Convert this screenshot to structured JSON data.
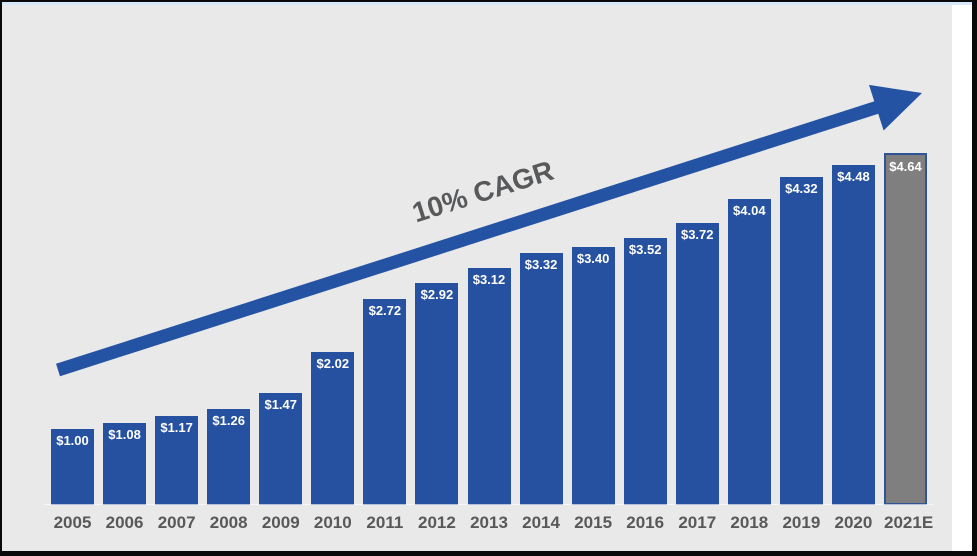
{
  "chart_data": {
    "type": "bar",
    "title": "",
    "annotation": "10% CAGR",
    "categories": [
      "2005",
      "2006",
      "2007",
      "2008",
      "2009",
      "2010",
      "2011",
      "2012",
      "2013",
      "2014",
      "2015",
      "2016",
      "2017",
      "2018",
      "2019",
      "2020",
      "2021E"
    ],
    "values": [
      1.0,
      1.08,
      1.17,
      1.26,
      1.47,
      2.02,
      2.72,
      2.92,
      3.12,
      3.32,
      3.4,
      3.52,
      3.72,
      4.04,
      4.32,
      4.48,
      4.64
    ],
    "bar_labels": [
      "$1.00",
      "$1.08",
      "$1.17",
      "$1.26",
      "$1.47",
      "$2.02",
      "$2.72",
      "$2.92",
      "$3.12",
      "$3.32",
      "$3.40",
      "$3.52",
      "$3.72",
      "$4.04",
      "$4.32",
      "$4.48",
      "$4.64"
    ],
    "xlabel": "",
    "ylabel": "",
    "ylim": [
      0,
      4.64
    ],
    "grid": false,
    "legend": null,
    "highlight_index": 16,
    "colors": {
      "bar": "#2551A0",
      "highlight_bar": "#7F7F7F",
      "highlight_border": "#2F5597",
      "bar_label": "#FFFFFF",
      "axis_label": "#595959",
      "annotation": "#58595B",
      "arrow": "#2453A4",
      "background": "#E9E9E9",
      "accent_strip": "#D7E8F8"
    }
  }
}
